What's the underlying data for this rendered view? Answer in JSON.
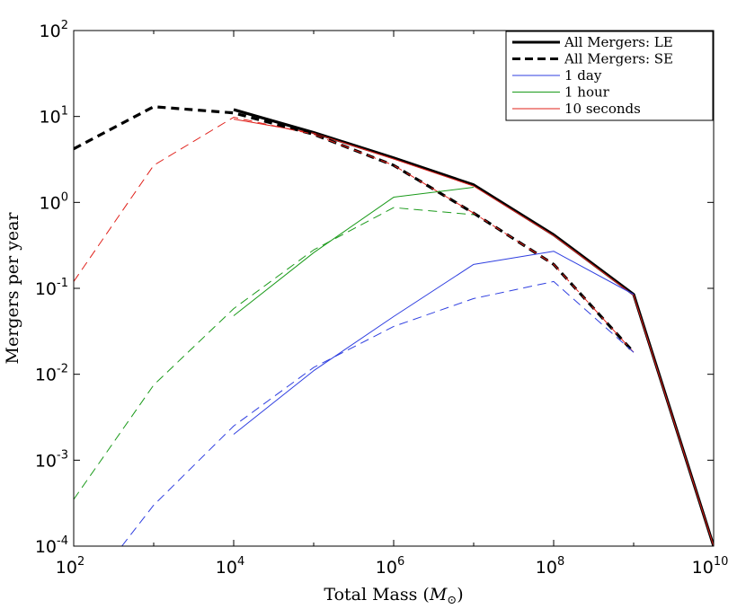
{
  "chart_data": {
    "type": "line",
    "xscale": "log",
    "yscale": "log",
    "xlim": [
      100,
      10000000000
    ],
    "ylim": [
      0.0001,
      100
    ],
    "xlabel": "Total Mass",
    "xlabel_symbol": "M",
    "xlabel_sub": "⊙",
    "ylabel": "Mergers per year",
    "xticks": [
      {
        "value": 100,
        "base": "10",
        "exp": "2"
      },
      {
        "value": 10000,
        "base": "10",
        "exp": "4"
      },
      {
        "value": 1000000,
        "base": "10",
        "exp": "6"
      },
      {
        "value": 100000000,
        "base": "10",
        "exp": "8"
      },
      {
        "value": 10000000000,
        "base": "10",
        "exp": "10"
      }
    ],
    "yticks": [
      {
        "value": 0.0001,
        "base": "10",
        "exp": "-4"
      },
      {
        "value": 0.001,
        "base": "10",
        "exp": "-3"
      },
      {
        "value": 0.01,
        "base": "10",
        "exp": "-2"
      },
      {
        "value": 0.1,
        "base": "10",
        "exp": "-1"
      },
      {
        "value": 1,
        "base": "10",
        "exp": "0"
      },
      {
        "value": 10,
        "base": "10",
        "exp": "1"
      },
      {
        "value": 100,
        "base": "10",
        "exp": "2"
      }
    ],
    "legend_position": "top-right",
    "legend": [
      {
        "label": "All Mergers: LE",
        "color": "#000000",
        "width": 3,
        "dash": "solid"
      },
      {
        "label": "All Mergers: SE",
        "color": "#000000",
        "width": 3,
        "dash": "dashed"
      },
      {
        "label": "1 day",
        "color": "#2f3fe0",
        "width": 1,
        "dash": "solid"
      },
      {
        "label": "1 hour",
        "color": "#1a9a1a",
        "width": 1,
        "dash": "solid"
      },
      {
        "label": "10 seconds",
        "color": "#e0201a",
        "width": 1,
        "dash": "solid"
      }
    ],
    "series": [
      {
        "name": "All Mergers: LE",
        "color": "#000000",
        "width": 3.2,
        "dash": "solid",
        "x": [
          10000,
          100000,
          1000000,
          10000000,
          100000000,
          1000000000,
          10000000000
        ],
        "y": [
          12,
          6.5,
          3.3,
          1.6,
          0.42,
          0.085,
          0.0001
        ]
      },
      {
        "name": "10 seconds (LE)",
        "color": "#e0201a",
        "width": 1,
        "dash": "solid",
        "x": [
          10000,
          100000,
          1000000,
          10000000,
          100000000,
          1000000000,
          10000000000
        ],
        "y": [
          9.3,
          6.4,
          3.2,
          1.55,
          0.41,
          0.083,
          0.0001
        ]
      },
      {
        "name": "All Mergers: SE",
        "color": "#000000",
        "width": 3.2,
        "dash": "dashed",
        "x": [
          100,
          1000,
          10000,
          100000,
          1000000,
          10000000,
          100000000,
          1000000000
        ],
        "y": [
          4.2,
          13,
          11,
          6.2,
          2.7,
          0.75,
          0.19,
          0.018
        ]
      },
      {
        "name": "10 seconds (SE)",
        "color": "#e0201a",
        "width": 1,
        "dash": "dashed",
        "x": [
          100,
          1000,
          10000,
          100000,
          1000000,
          10000000,
          100000000,
          1000000000
        ],
        "y": [
          0.12,
          2.7,
          9.8,
          6.2,
          2.7,
          0.75,
          0.19,
          0.018
        ]
      },
      {
        "name": "1 hour (LE)",
        "color": "#1a9a1a",
        "width": 1,
        "dash": "solid",
        "x": [
          10000,
          100000,
          1000000,
          10000000
        ],
        "y": [
          0.048,
          0.26,
          1.15,
          1.5
        ]
      },
      {
        "name": "1 hour (SE)",
        "color": "#1a9a1a",
        "width": 1,
        "dash": "dashed",
        "x": [
          100,
          1000,
          10000,
          100000,
          1000000,
          10000000
        ],
        "y": [
          0.00035,
          0.0075,
          0.058,
          0.28,
          0.87,
          0.72
        ]
      },
      {
        "name": "1 day (LE)",
        "color": "#2f3fe0",
        "width": 1,
        "dash": "solid",
        "x": [
          10000,
          100000,
          1000000,
          10000000,
          100000000,
          1000000000
        ],
        "y": [
          0.002,
          0.011,
          0.047,
          0.19,
          0.27,
          0.085
        ]
      },
      {
        "name": "1 day (SE)",
        "color": "#2f3fe0",
        "width": 1,
        "dash": "dashed",
        "x": [
          400,
          1000,
          10000,
          100000,
          1000000,
          10000000,
          100000000,
          1000000000
        ],
        "y": [
          0.0001,
          0.0003,
          0.0025,
          0.012,
          0.036,
          0.076,
          0.12,
          0.018
        ]
      }
    ]
  }
}
